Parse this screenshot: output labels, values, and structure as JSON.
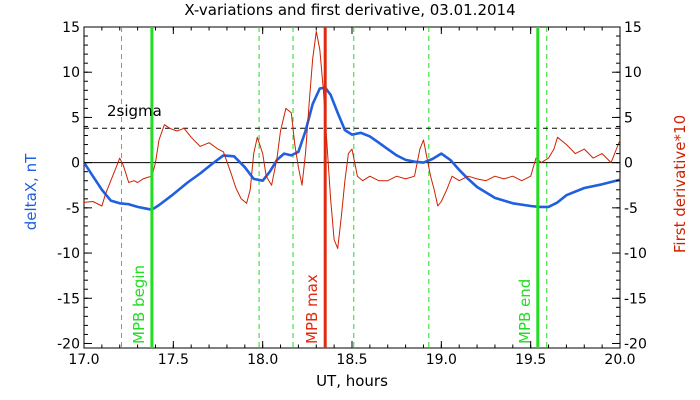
{
  "chart_data": {
    "type": "line",
    "title": "X-variations and first derivative, 03.01.2014",
    "xlabel": "UT, hours",
    "ylabel_left": "deltaX, nT",
    "ylabel_right": "First derivative*10",
    "xlim": [
      17.0,
      20.0
    ],
    "ylim": [
      -20.5,
      15
    ],
    "ylim_right": [
      -20.5,
      15
    ],
    "xticks": [
      17.0,
      17.5,
      18.0,
      18.5,
      19.0,
      19.5,
      20.0
    ],
    "xtick_labels": [
      "17.0",
      "17.5",
      "18.0",
      "18.5",
      "19.0",
      "19.5",
      "20.0"
    ],
    "yticks": [
      -20,
      -15,
      -10,
      -5,
      0,
      5,
      10,
      15
    ],
    "ytick_labels": [
      "-20",
      "-15",
      "-10",
      "-5",
      "0",
      "5",
      "10",
      "15"
    ],
    "series": [
      {
        "name": "deltaX, nT",
        "color": "#1f5fe0",
        "x": [
          17.0,
          17.05,
          17.1,
          17.15,
          17.2,
          17.25,
          17.3,
          17.35,
          17.38,
          17.42,
          17.5,
          17.58,
          17.65,
          17.72,
          17.78,
          17.84,
          17.9,
          17.95,
          18.0,
          18.04,
          18.08,
          18.12,
          18.16,
          18.2,
          18.24,
          18.28,
          18.32,
          18.35,
          18.38,
          18.42,
          18.46,
          18.5,
          18.55,
          18.6,
          18.65,
          18.7,
          18.75,
          18.8,
          18.85,
          18.9,
          18.95,
          19.0,
          19.05,
          19.1,
          19.15,
          19.2,
          19.3,
          19.4,
          19.5,
          19.55,
          19.6,
          19.65,
          19.7,
          19.8,
          19.9,
          20.0
        ],
        "y": [
          0.0,
          -1.5,
          -3.0,
          -4.2,
          -4.5,
          -4.6,
          -4.9,
          -5.1,
          -5.2,
          -4.7,
          -3.5,
          -2.2,
          -1.2,
          -0.1,
          0.8,
          0.7,
          -0.5,
          -1.8,
          -2.0,
          -1.0,
          0.3,
          1.0,
          0.8,
          1.2,
          3.5,
          6.5,
          8.2,
          8.3,
          7.5,
          5.5,
          3.6,
          3.1,
          3.3,
          2.9,
          2.2,
          1.5,
          0.8,
          0.3,
          0.1,
          0.0,
          0.4,
          1.0,
          0.3,
          -0.8,
          -1.8,
          -2.7,
          -3.9,
          -4.5,
          -4.8,
          -4.9,
          -4.9,
          -4.4,
          -3.6,
          -2.8,
          -2.4,
          -1.9
        ]
      },
      {
        "name": "First derivative*10",
        "color": "#cc2200",
        "x": [
          17.0,
          17.05,
          17.1,
          17.12,
          17.15,
          17.18,
          17.2,
          17.22,
          17.25,
          17.28,
          17.3,
          17.33,
          17.36,
          17.38,
          17.4,
          17.42,
          17.45,
          17.48,
          17.52,
          17.56,
          17.6,
          17.65,
          17.7,
          17.75,
          17.78,
          17.82,
          17.85,
          17.88,
          17.91,
          17.93,
          17.95,
          17.97,
          18.0,
          18.02,
          18.05,
          18.08,
          18.1,
          18.13,
          18.16,
          18.18,
          18.2,
          18.22,
          18.24,
          18.26,
          18.28,
          18.3,
          18.32,
          18.34,
          18.36,
          18.38,
          18.4,
          18.42,
          18.44,
          18.46,
          18.48,
          18.5,
          18.53,
          18.56,
          18.6,
          18.65,
          18.7,
          18.75,
          18.8,
          18.85,
          18.88,
          18.9,
          18.92,
          18.94,
          18.96,
          18.98,
          19.0,
          19.03,
          19.06,
          19.1,
          19.15,
          19.2,
          19.25,
          19.3,
          19.35,
          19.4,
          19.45,
          19.5,
          19.53,
          19.56,
          19.6,
          19.63,
          19.65,
          19.7,
          19.75,
          19.8,
          19.85,
          19.9,
          19.95,
          20.0
        ],
        "y": [
          -4.4,
          -4.3,
          -4.8,
          -3.5,
          -2.0,
          -0.5,
          0.5,
          -0.3,
          -2.2,
          -2.0,
          -2.2,
          -1.8,
          -1.6,
          -1.5,
          0.0,
          2.5,
          4.2,
          3.8,
          3.5,
          3.8,
          2.8,
          1.8,
          2.2,
          1.5,
          1.2,
          -1.0,
          -2.8,
          -4.0,
          -4.5,
          -3.0,
          1.0,
          2.8,
          1.0,
          -1.5,
          -2.5,
          0.5,
          3.5,
          6.0,
          5.5,
          2.0,
          -0.5,
          -2.5,
          1.0,
          6.5,
          11.5,
          14.5,
          12.5,
          8.0,
          2.0,
          -4.0,
          -8.5,
          -9.5,
          -6.0,
          -2.0,
          1.0,
          1.5,
          -1.5,
          -2.0,
          -1.5,
          -2.0,
          -2.0,
          -1.5,
          -1.8,
          -1.5,
          1.5,
          2.5,
          0.5,
          -1.5,
          -3.0,
          -4.8,
          -4.3,
          -3.0,
          -1.5,
          -2.0,
          -1.5,
          -1.8,
          -2.0,
          -1.5,
          -1.8,
          -1.5,
          -2.0,
          -1.5,
          0.5,
          0.0,
          0.5,
          1.5,
          2.8,
          2.0,
          1.0,
          1.5,
          0.5,
          1.0,
          0.0,
          2.5
        ]
      }
    ],
    "reference_lines": {
      "sigma_label": "2sigma",
      "sigma_value": 3.8,
      "zero_value": 0,
      "dashed_green_x": [
        17.21,
        17.98,
        18.17,
        18.51,
        18.93,
        19.59
      ],
      "solid_markers": [
        {
          "x": 17.38,
          "label": "MPB begin",
          "color": "#22dd22"
        },
        {
          "x": 18.35,
          "label": "MPB max",
          "color": "#e02a10"
        },
        {
          "x": 19.54,
          "label": "MPB end",
          "color": "#22dd22"
        }
      ]
    }
  }
}
